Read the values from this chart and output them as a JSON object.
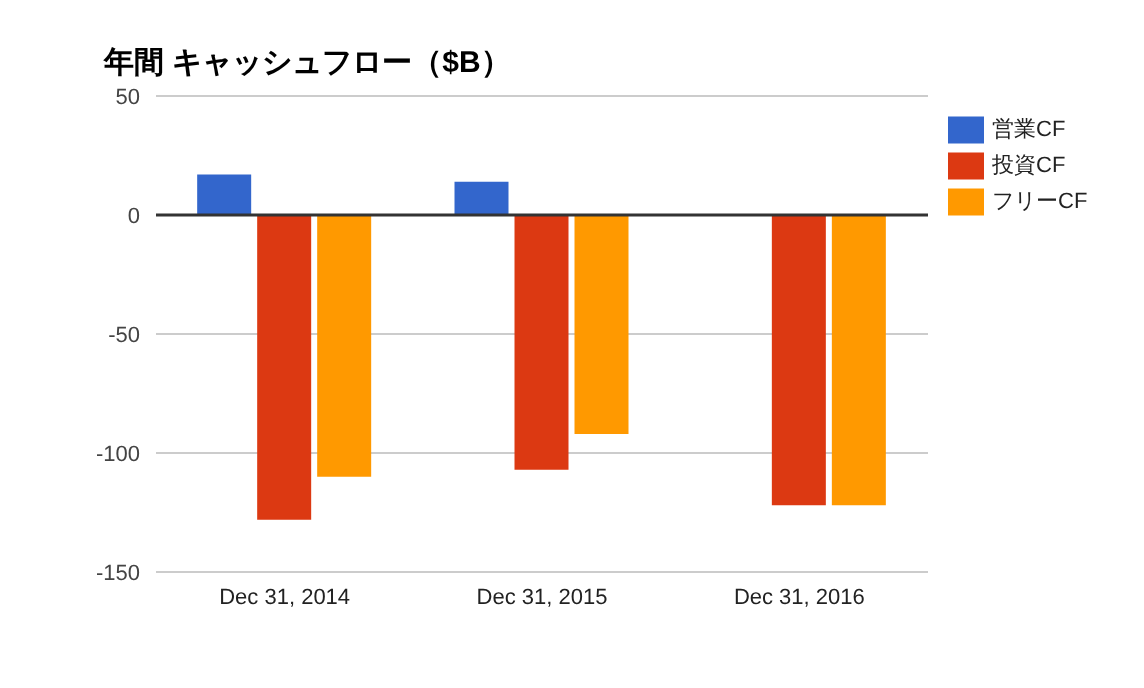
{
  "chart_data": {
    "type": "bar",
    "title": "年間 キャッシュフロー（$B）",
    "categories": [
      "Dec 31, 2014",
      "Dec 31, 2015",
      "Dec 31, 2016"
    ],
    "series": [
      {
        "name": "営業CF",
        "color": "#3366cc",
        "values": [
          17,
          14,
          null
        ]
      },
      {
        "name": "投資CF",
        "color": "#dc3912",
        "values": [
          -128,
          -107,
          -122
        ]
      },
      {
        "name": "フリーCF",
        "color": "#ff9900",
        "values": [
          -110,
          -92,
          -122
        ]
      }
    ],
    "ylim": [
      -150,
      50
    ],
    "yticks": [
      -150,
      -100,
      -50,
      0,
      50
    ],
    "grid": "y",
    "legend": "right"
  }
}
